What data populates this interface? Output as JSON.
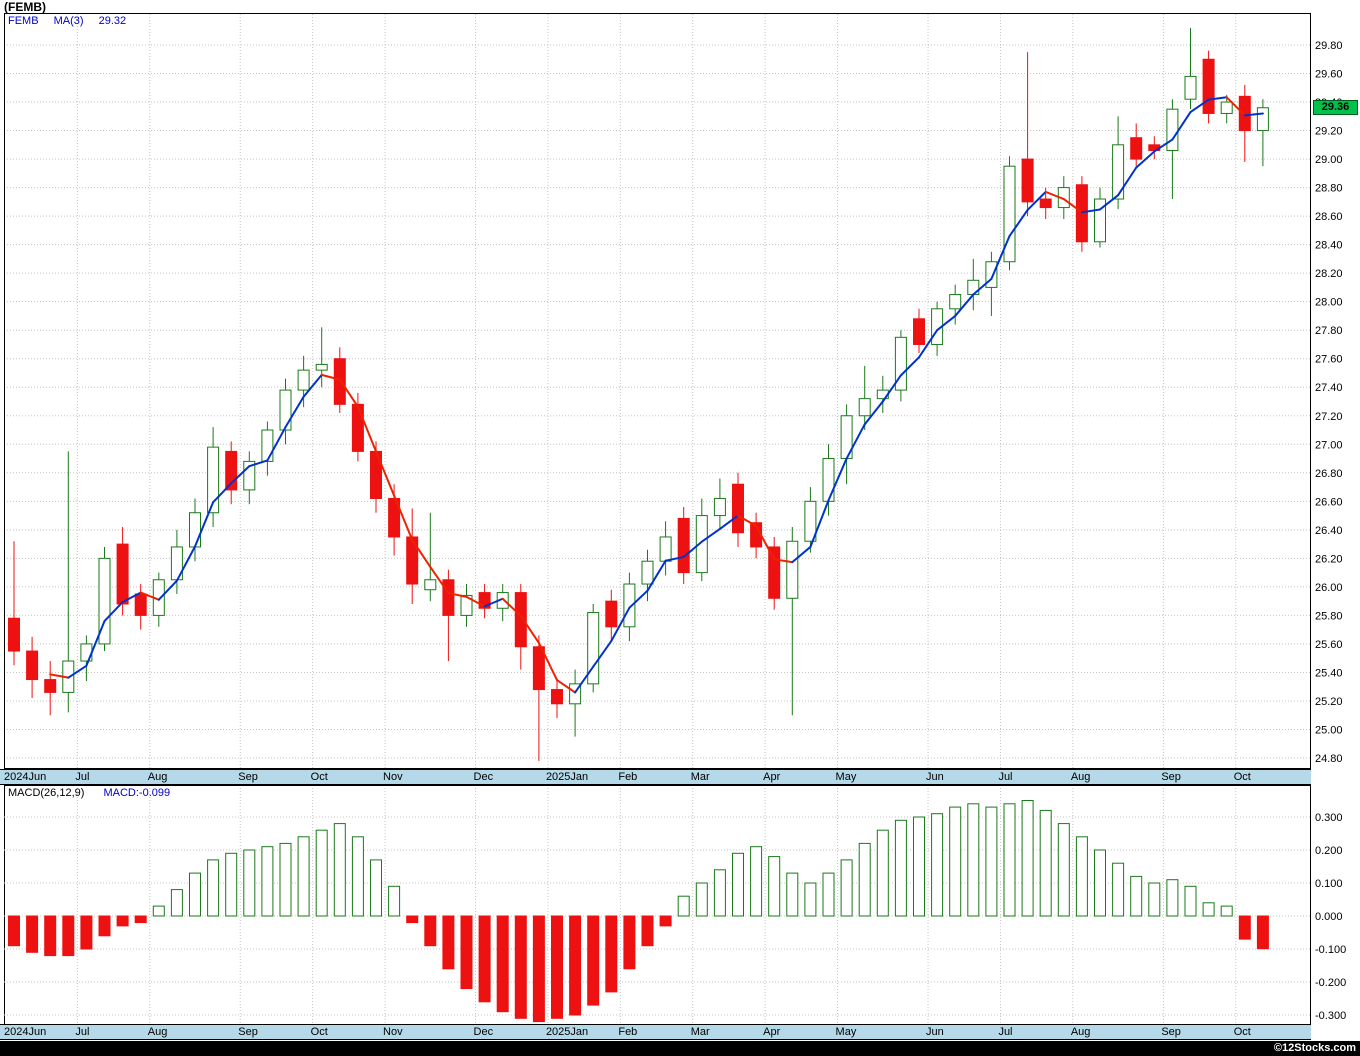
{
  "title": "(FEMB)",
  "price_panel": {
    "legend": {
      "symbol": "FEMB",
      "ma_label": "MA(3)",
      "ma_value": "29.32"
    },
    "last_price_badge": "29.36"
  },
  "macd_panel": {
    "legend_left": "MACD(26,12,9)",
    "legend_right": "MACD:-0.099"
  },
  "footer": {
    "copyright": "©12Stocks.com"
  },
  "colors": {
    "up": "#1a7a1a",
    "down": "#ee1111",
    "ma_up": "#0033cc",
    "ma_down": "#ee2200",
    "grid": "#c4c4c4",
    "border": "#000000"
  },
  "chart_data": [
    {
      "type": "candlestick",
      "name": "FEMB weekly price with MA(3) overlay",
      "ylabel": "Price",
      "ylim": [
        24.8,
        29.8
      ],
      "ytick_step": 0.2,
      "ma_period": 3,
      "ma_last": 29.32,
      "last_close": 29.36,
      "grid": true,
      "months": [
        {
          "label": "2024Jun",
          "count": 4
        },
        {
          "label": "Jul",
          "count": 4
        },
        {
          "label": "Aug",
          "count": 5
        },
        {
          "label": "Sep",
          "count": 4
        },
        {
          "label": "Oct",
          "count": 4
        },
        {
          "label": "Nov",
          "count": 5
        },
        {
          "label": "Dec",
          "count": 4
        },
        {
          "label": "2025Jan",
          "count": 4
        },
        {
          "label": "Feb",
          "count": 4
        },
        {
          "label": "Mar",
          "count": 4
        },
        {
          "label": "Apr",
          "count": 4
        },
        {
          "label": "May",
          "count": 5
        },
        {
          "label": "Jun",
          "count": 4
        },
        {
          "label": "Jul",
          "count": 4
        },
        {
          "label": "Aug",
          "count": 5
        },
        {
          "label": "Sep",
          "count": 4
        },
        {
          "label": "Oct",
          "count": 2
        }
      ],
      "candles": [
        [
          25.78,
          26.32,
          25.45,
          25.55
        ],
        [
          25.55,
          25.65,
          25.22,
          25.35
        ],
        [
          25.35,
          25.48,
          25.1,
          25.26
        ],
        [
          25.26,
          26.95,
          25.12,
          25.48
        ],
        [
          25.48,
          25.66,
          25.34,
          25.6
        ],
        [
          25.6,
          26.28,
          25.55,
          26.2
        ],
        [
          26.3,
          26.42,
          25.8,
          25.88
        ],
        [
          25.95,
          26.02,
          25.7,
          25.8
        ],
        [
          25.8,
          26.1,
          25.72,
          26.05
        ],
        [
          26.05,
          26.4,
          25.95,
          26.28
        ],
        [
          26.28,
          26.62,
          26.18,
          26.52
        ],
        [
          26.52,
          27.12,
          26.42,
          26.98
        ],
        [
          26.95,
          27.02,
          26.58,
          26.68
        ],
        [
          26.68,
          26.95,
          26.58,
          26.88
        ],
        [
          26.88,
          27.16,
          26.78,
          27.1
        ],
        [
          27.1,
          27.46,
          27.0,
          27.38
        ],
        [
          27.38,
          27.62,
          27.26,
          27.52
        ],
        [
          27.52,
          27.82,
          27.4,
          27.56
        ],
        [
          27.6,
          27.68,
          27.22,
          27.28
        ],
        [
          27.28,
          27.36,
          26.88,
          26.95
        ],
        [
          26.95,
          27.02,
          26.52,
          26.62
        ],
        [
          26.62,
          26.72,
          26.22,
          26.35
        ],
        [
          26.35,
          26.55,
          25.88,
          26.02
        ],
        [
          25.98,
          26.52,
          25.9,
          26.05
        ],
        [
          26.05,
          26.12,
          25.48,
          25.8
        ],
        [
          25.8,
          26.02,
          25.72,
          25.94
        ],
        [
          25.96,
          26.02,
          25.78,
          25.85
        ],
        [
          25.85,
          26.02,
          25.76,
          25.96
        ],
        [
          25.96,
          26.02,
          25.42,
          25.58
        ],
        [
          25.58,
          25.66,
          24.78,
          25.28
        ],
        [
          25.28,
          25.36,
          25.08,
          25.18
        ],
        [
          25.18,
          25.42,
          24.95,
          25.32
        ],
        [
          25.32,
          25.88,
          25.26,
          25.82
        ],
        [
          25.9,
          25.98,
          25.62,
          25.72
        ],
        [
          25.72,
          26.1,
          25.62,
          26.02
        ],
        [
          26.02,
          26.26,
          25.9,
          26.18
        ],
        [
          26.18,
          26.46,
          26.08,
          26.35
        ],
        [
          26.48,
          26.56,
          26.02,
          26.1
        ],
        [
          26.1,
          26.62,
          26.04,
          26.5
        ],
        [
          26.5,
          26.76,
          26.4,
          26.62
        ],
        [
          26.72,
          26.8,
          26.28,
          26.38
        ],
        [
          26.45,
          26.52,
          26.2,
          26.28
        ],
        [
          26.28,
          26.35,
          25.84,
          25.92
        ],
        [
          25.92,
          26.42,
          25.1,
          26.32
        ],
        [
          26.32,
          26.7,
          26.24,
          26.6
        ],
        [
          26.6,
          27.0,
          26.5,
          26.9
        ],
        [
          26.9,
          27.28,
          26.72,
          27.2
        ],
        [
          27.2,
          27.55,
          27.1,
          27.32
        ],
        [
          27.32,
          27.48,
          27.22,
          27.38
        ],
        [
          27.38,
          27.8,
          27.3,
          27.75
        ],
        [
          27.88,
          27.95,
          27.64,
          27.7
        ],
        [
          27.7,
          28.0,
          27.62,
          27.95
        ],
        [
          27.95,
          28.12,
          27.84,
          28.05
        ],
        [
          28.05,
          28.3,
          27.94,
          28.15
        ],
        [
          28.1,
          28.35,
          27.9,
          28.28
        ],
        [
          28.28,
          29.02,
          28.22,
          28.95
        ],
        [
          29.0,
          29.75,
          28.6,
          28.7
        ],
        [
          28.72,
          28.8,
          28.58,
          28.66
        ],
        [
          28.66,
          28.88,
          28.58,
          28.8
        ],
        [
          28.82,
          28.88,
          28.35,
          28.42
        ],
        [
          28.42,
          28.8,
          28.38,
          28.72
        ],
        [
          28.72,
          29.3,
          28.65,
          29.1
        ],
        [
          29.15,
          29.25,
          28.95,
          29.0
        ],
        [
          29.1,
          29.16,
          29.0,
          29.06
        ],
        [
          29.06,
          29.42,
          28.72,
          29.35
        ],
        [
          29.42,
          29.92,
          29.35,
          29.58
        ],
        [
          29.7,
          29.76,
          29.25,
          29.32
        ],
        [
          29.32,
          29.45,
          29.25,
          29.4
        ],
        [
          29.44,
          29.52,
          28.98,
          29.2
        ],
        [
          29.2,
          29.42,
          28.95,
          29.36
        ]
      ]
    },
    {
      "type": "bar",
      "name": "MACD(26,12,9) histogram",
      "ylim": [
        -0.35,
        0.4
      ],
      "yticks": [
        0.3,
        0.2,
        0.1,
        0.0,
        -0.1,
        -0.2,
        -0.3
      ],
      "last_value": -0.099,
      "grid": true,
      "values": [
        -0.09,
        -0.11,
        -0.12,
        -0.12,
        -0.1,
        -0.06,
        -0.03,
        -0.02,
        0.03,
        0.08,
        0.13,
        0.17,
        0.19,
        0.2,
        0.21,
        0.22,
        0.24,
        0.26,
        0.28,
        0.24,
        0.17,
        0.09,
        -0.02,
        -0.09,
        -0.16,
        -0.22,
        -0.26,
        -0.29,
        -0.31,
        -0.32,
        -0.31,
        -0.3,
        -0.27,
        -0.23,
        -0.16,
        -0.09,
        -0.03,
        0.06,
        0.1,
        0.14,
        0.19,
        0.21,
        0.18,
        0.13,
        0.1,
        0.13,
        0.17,
        0.22,
        0.26,
        0.29,
        0.3,
        0.31,
        0.33,
        0.34,
        0.33,
        0.34,
        0.35,
        0.32,
        0.28,
        0.24,
        0.2,
        0.16,
        0.12,
        0.1,
        0.11,
        0.09,
        0.04,
        0.03,
        -0.07,
        -0.099
      ]
    }
  ]
}
